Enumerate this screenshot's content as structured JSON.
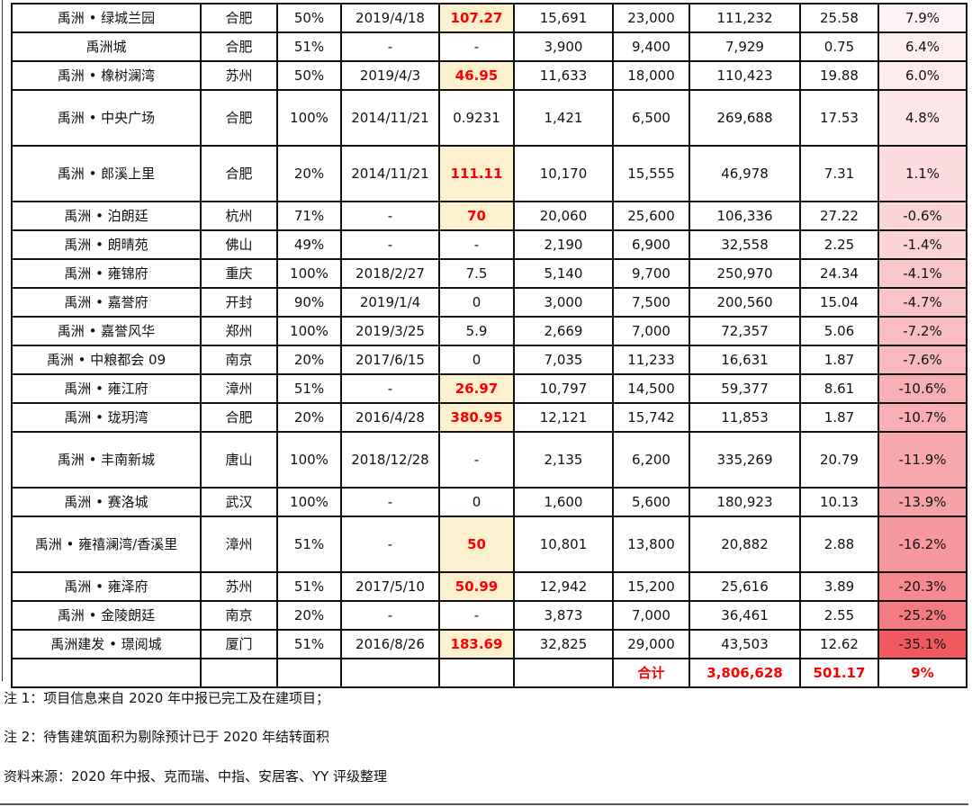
{
  "rows": [
    [
      "禹洲 • 绿城兰园",
      "合肥",
      "50%",
      "2019/4/18",
      "107.27",
      "15,691",
      "23,000",
      "111,232",
      "25.58",
      "7.9%",
      true,
      "#fef3f4",
      false
    ],
    [
      "禹洲城",
      "合肥",
      "51%",
      "-",
      "-",
      "3,900",
      "9,400",
      "7,929",
      "0.75",
      "6.4%",
      false,
      "#fdeef0",
      false
    ],
    [
      "禹洲 • 橡树澜湾",
      "苏州",
      "50%",
      "2019/4/3",
      "46.95",
      "11,633",
      "18,000",
      "110,423",
      "19.88",
      "6.0%",
      true,
      "#fdebed",
      false
    ],
    [
      "禹洲 • 中央广场",
      "合肥",
      "100%",
      "2014/11/21",
      "0.9231",
      "1,421",
      "6,500",
      "269,688",
      "17.53",
      "4.8%",
      false,
      "#fce6e8",
      true
    ],
    [
      "禹洲 • 郎溪上里",
      "合肥",
      "20%",
      "2014/11/21",
      "111.11",
      "10,170",
      "15,555",
      "46,978",
      "7.31",
      "1.1%",
      true,
      "#fcdadd",
      true
    ],
    [
      "禹洲 • 泊朗廷",
      "杭州",
      "71%",
      "-",
      "70",
      "20,060",
      "25,600",
      "106,336",
      "27.22",
      "-0.6%",
      true,
      "#fbd4d7",
      false
    ],
    [
      "禹洲 • 朗晴苑",
      "佛山",
      "49%",
      "-",
      "-",
      "2,190",
      "6,900",
      "32,558",
      "2.25",
      "-1.4%",
      false,
      "#fbd2d5",
      false
    ],
    [
      "禹洲 • 雍锦府",
      "重庆",
      "100%",
      "2018/2/27",
      "7.5",
      "5,140",
      "9,700",
      "250,970",
      "24.34",
      "-4.1%",
      false,
      "#fac8cb",
      false
    ],
    [
      "禹洲 • 嘉誉府",
      "开封",
      "90%",
      "2019/1/4",
      "0",
      "3,000",
      "7,500",
      "200,560",
      "15.04",
      "-4.7%",
      false,
      "#fac5c8",
      false
    ],
    [
      "禹洲 • 嘉誉风华",
      "郑州",
      "100%",
      "2019/3/25",
      "5.9",
      "2,669",
      "7,000",
      "72,357",
      "5.06",
      "-7.2%",
      false,
      "#f9bcc0",
      false
    ],
    [
      "禹洲 • 中粮都会 09",
      "南京",
      "20%",
      "2017/6/15",
      "0",
      "7,035",
      "11,233",
      "16,631",
      "1.87",
      "-7.6%",
      false,
      "#f9babe",
      false
    ],
    [
      "禹洲 • 雍江府",
      "漳州",
      "51%",
      "-",
      "26.97",
      "10,797",
      "14,500",
      "59,377",
      "8.61",
      "-10.6%",
      true,
      "#f8afb3",
      false
    ],
    [
      "禹洲 • 珑玥湾",
      "合肥",
      "20%",
      "2016/4/28",
      "380.95",
      "12,121",
      "15,742",
      "11,853",
      "1.87",
      "-10.7%",
      true,
      "#f8aeb2",
      false
    ],
    [
      "禹洲 • 丰南新城",
      "唐山",
      "100%",
      "2018/12/28",
      "-",
      "2,135",
      "6,200",
      "335,269",
      "20.79",
      "-11.9%",
      false,
      "#f7a9ad",
      true
    ],
    [
      "禹洲 • 赛洛城",
      "武汉",
      "100%",
      "-",
      "0",
      "1,600",
      "5,600",
      "180,923",
      "10.13",
      "-13.9%",
      false,
      "#f7a2a6",
      false
    ],
    [
      "禹洲 • 雍禧澜湾/香溪里",
      "漳州",
      "51%",
      "-",
      "50",
      "10,801",
      "13,800",
      "20,882",
      "2.88",
      "-16.2%",
      true,
      "#f6999d",
      true
    ],
    [
      "禹洲 • 雍泽府",
      "苏州",
      "51%",
      "2017/5/10",
      "50.99",
      "12,942",
      "15,200",
      "25,616",
      "3.89",
      "-20.3%",
      true,
      "#f58a8f",
      false
    ],
    [
      "禹洲 • 金陵朗廷",
      "南京",
      "20%",
      "-",
      "-",
      "3,873",
      "7,000",
      "36,461",
      "2.55",
      "-25.2%",
      false,
      "#f47b80",
      false
    ],
    [
      "禹洲建发 • 璟阅城",
      "厦门",
      "51%",
      "2016/8/26",
      "183.69",
      "32,825",
      "29,000",
      "43,503",
      "12.62",
      "-35.1%",
      true,
      "#f2595e",
      false
    ]
  ],
  "total": {
    "label": "合计",
    "area": "3,806,628",
    "value": "501.17",
    "pct": "9%"
  },
  "notes": [
    "注 1：项目信息来自 2020 年中报已完工及在建项目；",
    "注 2：待售建筑面积为剔除预计已于 2020 年结转面积",
    "资料来源：2020 年中报、克而瑞、中指、安居客、YY 评级整理"
  ],
  "colors": {
    "highlight_bg": "#fdf0cf",
    "highlight_text": "#ff0000"
  }
}
